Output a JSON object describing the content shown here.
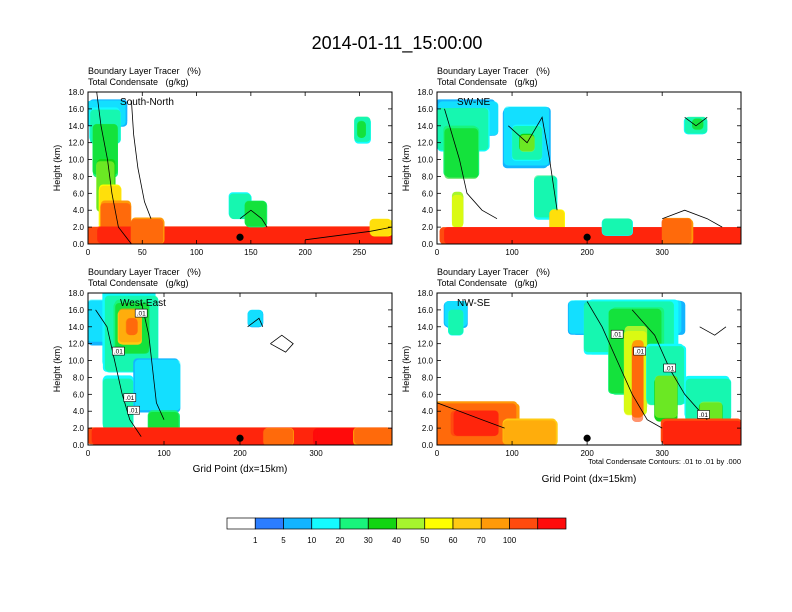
{
  "title": "2014-01-11_15:00:00",
  "colors": {
    "colorbar": [
      "#ffffff",
      "#2b7dff",
      "#13b4ff",
      "#14fbff",
      "#18f57c",
      "#12d512",
      "#a6f52e",
      "#fefe00",
      "#ffca12",
      "#ff9a08",
      "#ff4b0e",
      "#ff0b0b"
    ],
    "contour": "#000000",
    "marker": "#000000"
  },
  "colorbar": {
    "labels": [
      "1",
      "5",
      "10",
      "20",
      "30",
      "40",
      "50",
      "60",
      "70",
      "100"
    ]
  },
  "chart_data": [
    {
      "type": "heatmap",
      "panel": "South-North",
      "title_lines": [
        "Boundary Layer Tracer   (%)",
        "Total Condensate   (g/kg)"
      ],
      "ylabel": "Height (km)",
      "xlabel": "",
      "xlim": [
        0,
        280
      ],
      "ylim": [
        0,
        18
      ],
      "xticks": [
        "0",
        "50",
        "100",
        "150",
        "200",
        "250"
      ],
      "xtick_values": [
        0,
        50,
        100,
        150,
        200,
        250
      ],
      "yticks": [
        "0.0",
        "2.0",
        "4.0",
        "6.0",
        "8.0",
        "10.0",
        "12.0",
        "14.0",
        "16.0",
        "18.0"
      ],
      "marker_x": 140,
      "contour_labels": []
    },
    {
      "type": "heatmap",
      "panel": "SW-NE",
      "title_lines": [
        "Boundary Layer Tracer   (%)",
        "Total Condensate   (g/kg)"
      ],
      "ylabel": "Height (km)",
      "xlabel": "",
      "xlim": [
        0,
        405
      ],
      "ylim": [
        0,
        18
      ],
      "xticks": [
        "0",
        "100",
        "200",
        "300"
      ],
      "xtick_values": [
        0,
        100,
        200,
        300
      ],
      "yticks": [
        "0.0",
        "2.0",
        "4.0",
        "6.0",
        "8.0",
        "10.0",
        "12.0",
        "14.0",
        "16.0",
        "18.0"
      ],
      "marker_x": 200,
      "contour_labels": []
    },
    {
      "type": "heatmap",
      "panel": "West-East",
      "title_lines": [
        "Boundary Layer Tracer   (%)",
        "Total Condensate   (g/kg)"
      ],
      "ylabel": "Height (km)",
      "xlabel": "Grid Point (dx=15km)",
      "xlim": [
        0,
        400
      ],
      "ylim": [
        0,
        18
      ],
      "xticks": [
        "0",
        "100",
        "200",
        "300"
      ],
      "xtick_values": [
        0,
        100,
        200,
        300
      ],
      "yticks": [
        "0.0",
        "2.0",
        "4.0",
        "6.0",
        "8.0",
        "10.0",
        "12.0",
        "14.0",
        "16.0",
        "18.0"
      ],
      "marker_x": 200,
      "contour_labels": [
        ".01",
        ".01",
        ".01",
        ".01"
      ]
    },
    {
      "type": "heatmap",
      "panel": "NW-SE",
      "title_lines": [
        "Boundary Layer Tracer   (%)",
        "Total Condensate   (g/kg)"
      ],
      "ylabel": "Height (km)",
      "xlabel": "Grid Point (dx=15km)",
      "xlim": [
        0,
        405
      ],
      "ylim": [
        0,
        18
      ],
      "xticks": [
        "0",
        "100",
        "200",
        "300"
      ],
      "xtick_values": [
        0,
        100,
        200,
        300
      ],
      "yticks": [
        "0.0",
        "2.0",
        "4.0",
        "6.0",
        "8.0",
        "10.0",
        "12.0",
        "14.0",
        "16.0",
        "18.0"
      ],
      "marker_x": 200,
      "contour_labels": [
        ".01",
        ".01",
        ".01",
        ".01"
      ],
      "note": "Total Condensate Contours: .01 to .01 by .000"
    }
  ]
}
